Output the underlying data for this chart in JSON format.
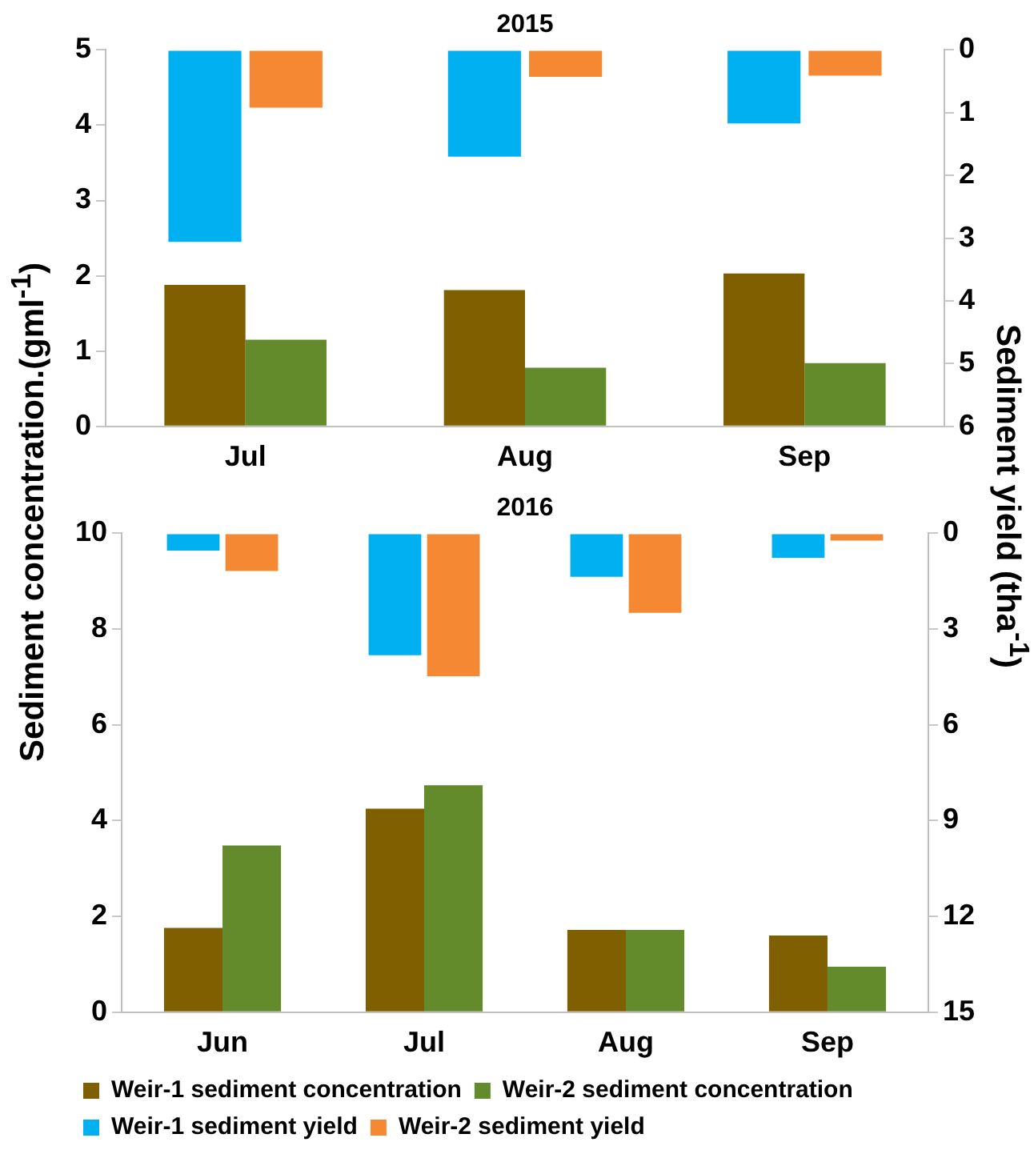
{
  "chart_data": [
    {
      "type": "bar",
      "title": "2015",
      "ylabel": "Sediment concentration.(gml$^{-1}$)",
      "y2label": "Sediment yield (tha$^{-1}$)",
      "categories": [
        "Jul",
        "Aug",
        "Sep"
      ],
      "series": [
        {
          "color": "#7f5f00",
          "values": [
            1.88,
            1.81,
            2.03
          ]
        },
        {
          "color": "#638a2b",
          "values": [
            1.15,
            0.78,
            0.84
          ]
        },
        {
          "color": "#00b0f0",
          "values": [
            3.06,
            1.7,
            1.17
          ],
          "axis": "y2"
        },
        {
          "color": "#f58833",
          "values": [
            0.92,
            0.43,
            0.41
          ],
          "axis": "y2"
        }
      ],
      "ylim": [
        0,
        5
      ],
      "yticks": [
        0,
        1,
        2,
        3,
        4,
        5
      ],
      "y2lim": [
        6,
        0
      ],
      "y2ticks": [
        0,
        1,
        2,
        3,
        4,
        5,
        6
      ],
      "grid": false,
      "legend": false
    },
    {
      "type": "bar",
      "title": "2016",
      "categories": [
        "Jun",
        "Jul",
        "Aug",
        "Sep"
      ],
      "series": [
        {
          "name": "Weir-1 sediment concentration",
          "color": "#7f5f00",
          "values": [
            1.76,
            4.25,
            1.72,
            1.6
          ]
        },
        {
          "name": "Weir-2 sediment concentration",
          "color": "#638a2b",
          "values": [
            3.48,
            4.74,
            1.72,
            0.95
          ]
        },
        {
          "name": "Weir-1 sediment yield",
          "color": "#00b0f0",
          "values": [
            0.54,
            3.82,
            1.36,
            0.77
          ],
          "axis": "y2"
        },
        {
          "name": "Weir-2 sediment yield",
          "color": "#f58833",
          "values": [
            1.18,
            4.48,
            2.49,
            0.23
          ],
          "axis": "y2"
        }
      ],
      "ylim": [
        0,
        10
      ],
      "yticks": [
        0,
        2,
        4,
        6,
        8,
        10
      ],
      "y2lim": [
        15,
        0
      ],
      "y2ticks": [
        0,
        3,
        6,
        9,
        12,
        15
      ],
      "grid": false,
      "legend": "bottom"
    }
  ]
}
